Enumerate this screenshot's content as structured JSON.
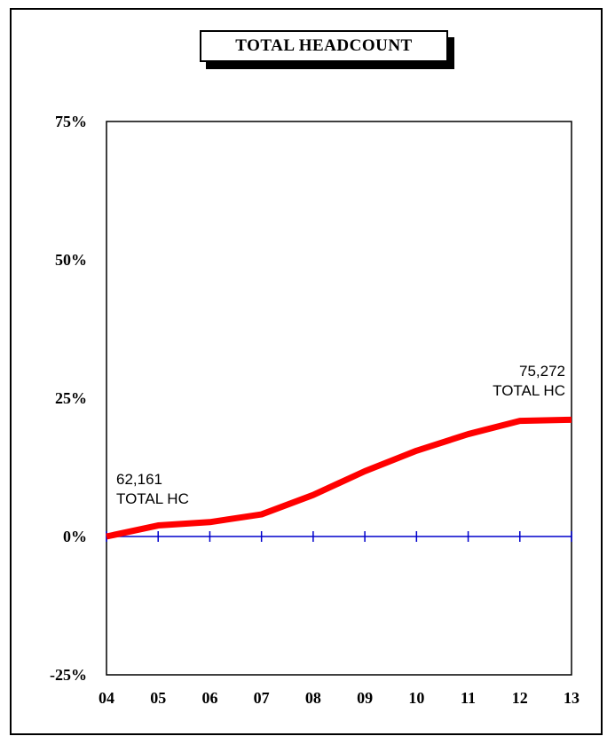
{
  "chart_data": {
    "type": "line",
    "title": "TOTAL HEADCOUNT",
    "categories": [
      "04",
      "05",
      "06",
      "07",
      "08",
      "09",
      "10",
      "11",
      "12",
      "13"
    ],
    "series": [
      {
        "values": [
          0,
          2,
          2.6,
          4,
          7.5,
          11.8,
          15.5,
          18.5,
          20.9,
          21.1
        ],
        "color": "#ff0000"
      },
      {
        "values": [
          0,
          0,
          0,
          0,
          0,
          0,
          0,
          0,
          0,
          0
        ],
        "color": "#0000cc"
      }
    ],
    "ylim": [
      -25,
      75
    ],
    "yticks": [
      "75%",
      "50%",
      "25%",
      "0%",
      "-25%"
    ],
    "ytick_values": [
      75,
      50,
      25,
      0,
      -25
    ],
    "grid": false,
    "annotations": [
      {
        "lines": [
          "62,161",
          "TOTAL HC"
        ],
        "at_category": "04",
        "at_value": 0
      },
      {
        "lines": [
          "75,272",
          "TOTAL HC"
        ],
        "at_category": "13",
        "at_value": 21.1
      }
    ]
  }
}
